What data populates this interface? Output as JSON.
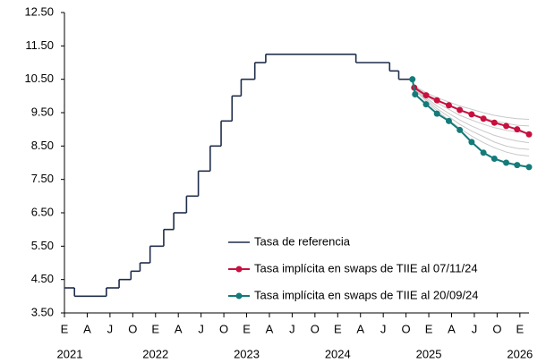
{
  "chart_data": {
    "type": "line",
    "xlim": [
      2021,
      2026.1
    ],
    "ylim": [
      3.5,
      12.5
    ],
    "yticks": [
      {
        "value": 3.5,
        "label": "3.50"
      },
      {
        "value": 4.5,
        "label": "4.50"
      },
      {
        "value": 5.5,
        "label": "5.50"
      },
      {
        "value": 6.5,
        "label": "6.50"
      },
      {
        "value": 7.5,
        "label": "7.50"
      },
      {
        "value": 8.5,
        "label": "8.50"
      },
      {
        "value": 9.5,
        "label": "9.50"
      },
      {
        "value": 10.5,
        "label": "10.50"
      },
      {
        "value": 11.5,
        "label": "11.50"
      },
      {
        "value": 12.5,
        "label": "12.50"
      }
    ],
    "xticks": [
      {
        "value": 2021,
        "label": "E"
      },
      {
        "value": 2021.25,
        "label": "A"
      },
      {
        "value": 2021.5,
        "label": "J"
      },
      {
        "value": 2021.75,
        "label": "O"
      },
      {
        "value": 2022,
        "label": "E"
      },
      {
        "value": 2022.25,
        "label": "A"
      },
      {
        "value": 2022.5,
        "label": "J"
      },
      {
        "value": 2022.75,
        "label": "O"
      },
      {
        "value": 2023,
        "label": "E"
      },
      {
        "value": 2023.25,
        "label": "A"
      },
      {
        "value": 2023.5,
        "label": "J"
      },
      {
        "value": 2023.75,
        "label": "O"
      },
      {
        "value": 2024,
        "label": "E"
      },
      {
        "value": 2024.25,
        "label": "A"
      },
      {
        "value": 2024.5,
        "label": "J"
      },
      {
        "value": 2024.75,
        "label": "O"
      },
      {
        "value": 2025,
        "label": "E"
      },
      {
        "value": 2025.25,
        "label": "A"
      },
      {
        "value": 2025.5,
        "label": "J"
      },
      {
        "value": 2025.75,
        "label": "O"
      },
      {
        "value": 2026,
        "label": "E"
      }
    ],
    "year_labels": [
      {
        "value": 2021,
        "label": "2021"
      },
      {
        "value": 2022,
        "label": "2022"
      },
      {
        "value": 2023,
        "label": "2023"
      },
      {
        "value": 2024,
        "label": "2024"
      },
      {
        "value": 2025,
        "label": "2025"
      },
      {
        "value": 2026,
        "label": "2026"
      }
    ],
    "legend": "lower center",
    "grey_curves": {
      "color": "#c8c8c8",
      "x": [
        2024.84,
        2024.97,
        2025.09,
        2025.22,
        2025.34,
        2025.47,
        2025.6,
        2025.72,
        2025.85,
        2025.97,
        2026.1
      ],
      "values": [
        [
          10.3,
          10.1,
          9.95,
          9.82,
          9.7,
          9.6,
          9.5,
          9.42,
          9.36,
          9.32,
          9.3
        ],
        [
          10.28,
          10.05,
          9.88,
          9.72,
          9.58,
          9.45,
          9.35,
          9.25,
          9.18,
          9.12,
          9.1
        ],
        [
          10.25,
          10.0,
          9.8,
          9.6,
          9.42,
          9.28,
          9.15,
          9.05,
          8.97,
          8.92,
          8.9
        ],
        [
          10.22,
          9.95,
          9.7,
          9.48,
          9.28,
          9.1,
          8.95,
          8.82,
          8.72,
          8.65,
          8.6
        ],
        [
          10.2,
          9.9,
          9.62,
          9.38,
          9.15,
          8.95,
          8.78,
          8.62,
          8.5,
          8.43,
          8.4
        ],
        [
          10.18,
          9.85,
          9.55,
          9.28,
          9.03,
          8.8,
          8.6,
          8.45,
          8.32,
          8.24,
          8.2
        ]
      ]
    },
    "series": [
      {
        "name": "Tasa de referencia",
        "color": "#1f2d4a",
        "style": "step",
        "x": [
          2021,
          2021.11,
          2021.46,
          2021.6,
          2021.73,
          2021.83,
          2021.94,
          2022.09,
          2022.2,
          2022.34,
          2022.47,
          2022.6,
          2022.72,
          2022.84,
          2022.94,
          2023.09,
          2023.21,
          2024.2,
          2024.57,
          2024.67,
          2024.82
        ],
        "values": [
          4.25,
          4.0,
          4.25,
          4.5,
          4.75,
          5.0,
          5.5,
          6.0,
          6.5,
          7.0,
          7.75,
          8.5,
          9.25,
          10.0,
          10.5,
          11.0,
          11.25,
          11.0,
          10.75,
          10.5,
          10.5
        ]
      },
      {
        "name": "Tasa implícita en swaps de TIIE al 07/11/24",
        "color": "#c8103e",
        "style": "markers",
        "x": [
          2024.84,
          2024.97,
          2025.09,
          2025.22,
          2025.34,
          2025.47,
          2025.6,
          2025.72,
          2025.85,
          2025.97,
          2026.1
        ],
        "values": [
          10.25,
          10.02,
          9.87,
          9.72,
          9.58,
          9.45,
          9.32,
          9.2,
          9.1,
          9.0,
          8.85
        ]
      },
      {
        "name": "Tasa implícita en swaps de TIIE al 20/09/24",
        "color": "#147a7a",
        "style": "markers",
        "x": [
          2024.82,
          2024.85,
          2024.97,
          2025.09,
          2025.22,
          2025.34,
          2025.47,
          2025.6,
          2025.72,
          2025.85,
          2025.97,
          2026.1
        ],
        "values": [
          10.5,
          10.05,
          9.75,
          9.47,
          9.25,
          8.98,
          8.62,
          8.3,
          8.12,
          8.0,
          7.93,
          7.87
        ]
      }
    ]
  }
}
